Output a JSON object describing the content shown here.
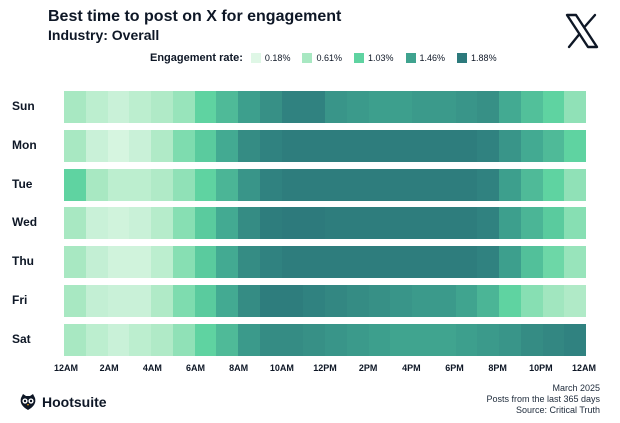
{
  "chart_data": {
    "type": "heatmap",
    "title": "Best time to post on X for engagement",
    "subtitle": "Industry: Overall",
    "legend_title": "Engagement rate:",
    "legend": [
      {
        "label": "0.18%",
        "value": 0.18,
        "color": "#dff7e6"
      },
      {
        "label": "0.61%",
        "value": 0.61,
        "color": "#a8e8c2"
      },
      {
        "label": "1.03%",
        "value": 1.03,
        "color": "#5fd3a1"
      },
      {
        "label": "1.46%",
        "value": 1.46,
        "color": "#3fa38f"
      },
      {
        "label": "1.88%",
        "value": 1.88,
        "color": "#2d7a7c"
      }
    ],
    "days": [
      "Sun",
      "Mon",
      "Tue",
      "Wed",
      "Thu",
      "Fri",
      "Sat"
    ],
    "hours": [
      "12AM",
      "1AM",
      "2AM",
      "3AM",
      "4AM",
      "5AM",
      "6AM",
      "7AM",
      "8AM",
      "9AM",
      "10AM",
      "11AM",
      "12PM",
      "1PM",
      "2PM",
      "3PM",
      "4PM",
      "5PM",
      "6PM",
      "7PM",
      "8PM",
      "9PM",
      "10PM",
      "11PM"
    ],
    "x_tick_labels": [
      "12AM",
      "2AM",
      "4AM",
      "6AM",
      "8AM",
      "10AM",
      "12PM",
      "2PM",
      "4PM",
      "6PM",
      "8PM",
      "10PM",
      "12AM"
    ],
    "values": [
      [
        0.61,
        0.45,
        0.35,
        0.45,
        0.55,
        0.7,
        1.03,
        1.25,
        1.5,
        1.65,
        1.8,
        1.8,
        1.6,
        1.55,
        1.5,
        1.5,
        1.55,
        1.55,
        1.6,
        1.65,
        1.4,
        1.2,
        1.03,
        0.75
      ],
      [
        0.61,
        0.35,
        0.25,
        0.35,
        0.55,
        0.85,
        1.1,
        1.4,
        1.7,
        1.8,
        1.85,
        1.85,
        1.85,
        1.85,
        1.85,
        1.85,
        1.85,
        1.85,
        1.85,
        1.8,
        1.6,
        1.4,
        1.25,
        1.03
      ],
      [
        1.03,
        0.61,
        0.45,
        0.45,
        0.55,
        0.75,
        1.03,
        1.3,
        1.6,
        1.8,
        1.85,
        1.85,
        1.85,
        1.85,
        1.85,
        1.85,
        1.85,
        1.85,
        1.85,
        1.8,
        1.5,
        1.25,
        1.03,
        0.75
      ],
      [
        0.61,
        0.35,
        0.3,
        0.35,
        0.5,
        0.8,
        1.1,
        1.4,
        1.7,
        1.85,
        1.9,
        1.88,
        1.85,
        1.85,
        1.85,
        1.85,
        1.85,
        1.85,
        1.85,
        1.8,
        1.5,
        1.3,
        1.1,
        0.8
      ],
      [
        0.61,
        0.4,
        0.3,
        0.3,
        0.45,
        0.8,
        1.1,
        1.4,
        1.7,
        1.8,
        1.85,
        1.85,
        1.85,
        1.85,
        1.85,
        1.85,
        1.85,
        1.85,
        1.85,
        1.8,
        1.5,
        1.2,
        0.95,
        0.7
      ],
      [
        0.61,
        0.4,
        0.35,
        0.35,
        0.55,
        0.85,
        1.1,
        1.4,
        1.7,
        1.85,
        1.85,
        1.8,
        1.75,
        1.7,
        1.65,
        1.6,
        1.55,
        1.55,
        1.45,
        1.3,
        1.03,
        0.8,
        0.65,
        0.55
      ],
      [
        0.61,
        0.45,
        0.35,
        0.45,
        0.55,
        0.75,
        1.03,
        1.25,
        1.55,
        1.7,
        1.7,
        1.65,
        1.6,
        1.55,
        1.5,
        1.45,
        1.45,
        1.45,
        1.5,
        1.55,
        1.6,
        1.7,
        1.75,
        1.8
      ]
    ]
  },
  "footer": {
    "brand": "Hootsuite",
    "date": "March 2025",
    "period": "Posts from the last 365 days",
    "source": "Source: Critical Truth"
  },
  "icons": {
    "brand_logo": "owl-logo-icon",
    "platform_logo": "x-logo-icon"
  }
}
